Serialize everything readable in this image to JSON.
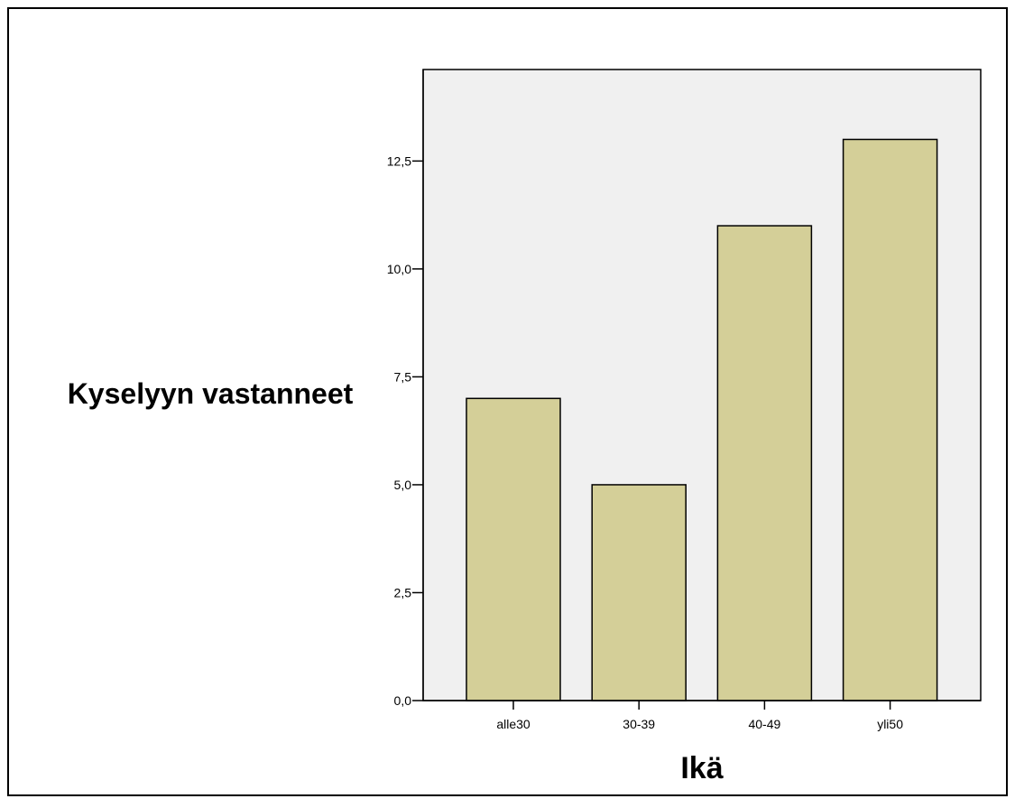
{
  "chart_data": {
    "type": "bar",
    "title": "",
    "xlabel": "Ikä",
    "ylabel": "Kyselyyn vastanneet",
    "categories": [
      "alle30",
      "30-39",
      "40-49",
      "yli50"
    ],
    "values": [
      7,
      5,
      11,
      13
    ],
    "ylim": [
      0,
      14.62
    ],
    "yticks": [
      0,
      2.5,
      5,
      7.5,
      10,
      12.5
    ],
    "ytick_labels": [
      "0,0",
      "2,5",
      "5,0",
      "7,5",
      "10,0",
      "12,5"
    ],
    "grid": false,
    "legend": "none",
    "colors": {
      "bar_fill": "#d4cf98",
      "bar_stroke": "#000000",
      "plot_background": "#f0f0f0",
      "frame": "#000000"
    }
  }
}
